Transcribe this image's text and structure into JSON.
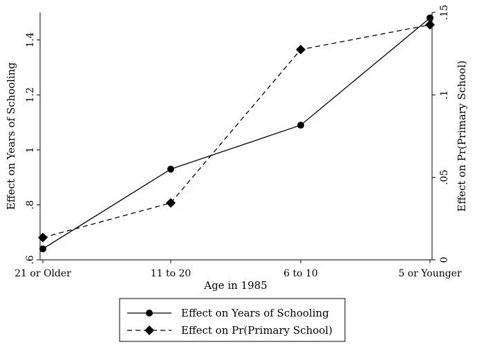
{
  "chart_data": {
    "type": "line",
    "xlabel": "Age in 1985",
    "categories": [
      "21 or Older",
      "11 to 20",
      "6 to 10",
      "5 or Younger"
    ],
    "y_left": {
      "label": "Effect on Years of Schooling",
      "range": [
        0.6,
        1.5
      ],
      "ticks": [
        0.6,
        0.8,
        1.0,
        1.2,
        1.4
      ],
      "tick_labels": [
        ".6",
        ".8",
        "1",
        "1.2",
        "1.4"
      ]
    },
    "y_right": {
      "label": "Effect on Pr(Primary School)",
      "range": [
        0,
        0.15
      ],
      "ticks": [
        0,
        0.05,
        0.1,
        0.15
      ],
      "tick_labels": [
        "0",
        ".05",
        ".1",
        ".15"
      ]
    },
    "series": [
      {
        "name": "Effect on Years of Schooling",
        "axis": "left",
        "marker": "circle",
        "line": "solid",
        "values": [
          0.64,
          0.93,
          1.09,
          1.48
        ]
      },
      {
        "name": "Effect on Pr(Primary School)",
        "axis": "right",
        "marker": "diamond",
        "line": "dashed",
        "values": [
          0.0135,
          0.0345,
          0.1275,
          0.1425
        ]
      }
    ],
    "grid": false,
    "legend_position": "bottom"
  }
}
